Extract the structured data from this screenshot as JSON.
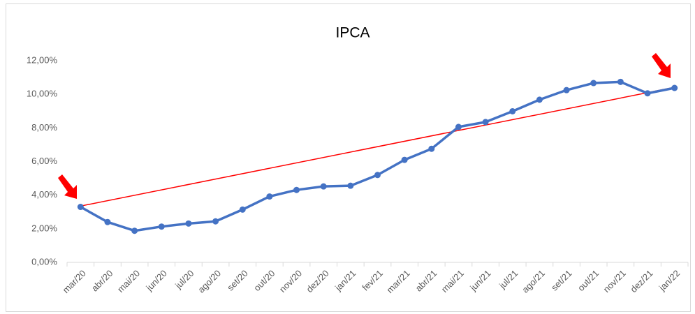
{
  "chart_data": {
    "type": "line",
    "title": "IPCA",
    "categories": [
      "mar/20",
      "abr/20",
      "mai/20",
      "jun/20",
      "jul/20",
      "ago/20",
      "set/20",
      "out/20",
      "nov/20",
      "dez/20",
      "jan/21",
      "fev/21",
      "mar/21",
      "abr/21",
      "mai/21",
      "jun/21",
      "jul/21",
      "ago/21",
      "set/21",
      "out/21",
      "nov/21",
      "dez/21",
      "jan/22"
    ],
    "values": [
      3.3,
      2.4,
      1.88,
      2.13,
      2.31,
      2.44,
      3.14,
      3.92,
      4.31,
      4.52,
      4.56,
      5.2,
      6.1,
      6.76,
      8.06,
      8.35,
      8.99,
      9.68,
      10.25,
      10.67,
      10.74,
      10.06,
      10.38
    ],
    "color": "#4472c4",
    "trendline": {
      "start": 3.35,
      "end": 10.42,
      "color": "#ff0000"
    },
    "ylim": [
      0,
      12
    ],
    "yticks": [
      {
        "value": 0,
        "label": "0,00%"
      },
      {
        "value": 2,
        "label": "2,00%"
      },
      {
        "value": 4,
        "label": "4,00%"
      },
      {
        "value": 6,
        "label": "6,00%"
      },
      {
        "value": 8,
        "label": "8,00%"
      },
      {
        "value": 10,
        "label": "10,00%"
      },
      {
        "value": 12,
        "label": "12,00%"
      }
    ],
    "grid": false
  }
}
